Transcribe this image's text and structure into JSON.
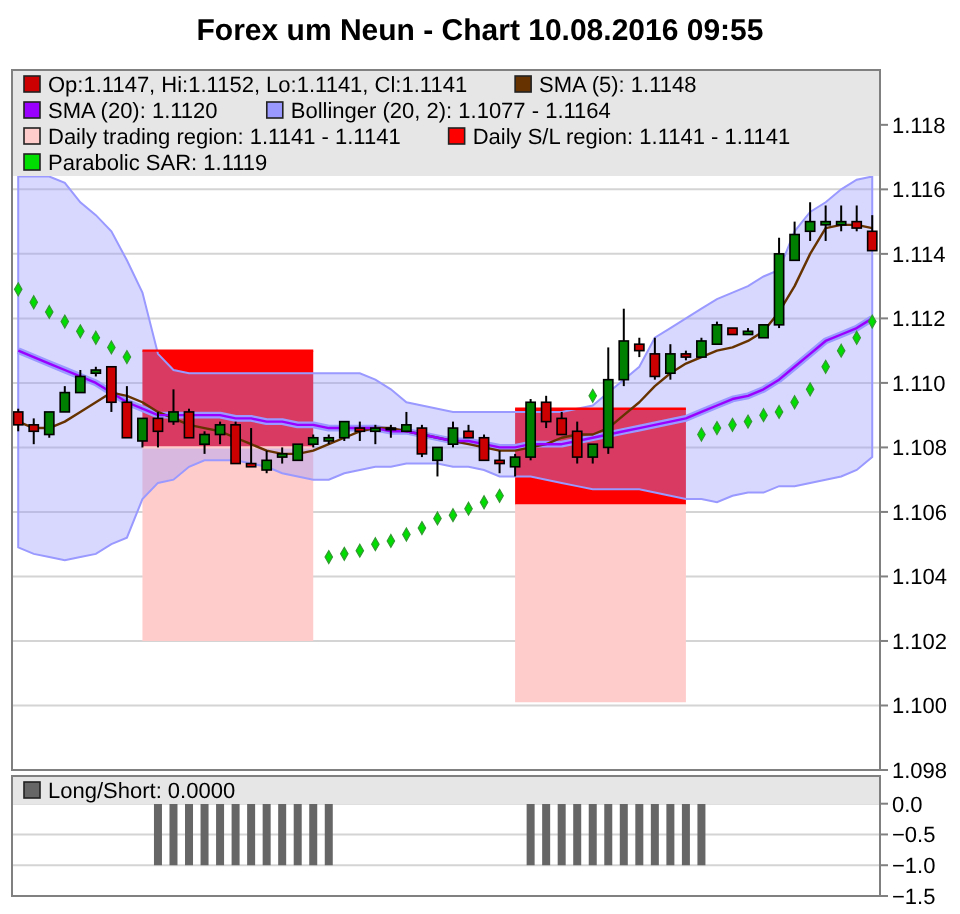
{
  "chart_data": [
    {
      "type": "candlestick",
      "title": "Forex um Neun - Chart 10.08.2016 09:55",
      "categories": [
        null,
        null,
        null,
        null,
        null,
        null,
        null,
        null,
        null,
        null,
        null,
        null,
        null,
        null,
        null,
        null,
        null,
        null,
        null,
        null,
        null,
        null,
        null,
        null,
        null,
        null,
        null,
        null,
        null,
        null,
        null,
        null,
        null,
        null,
        null,
        null,
        null,
        null,
        null,
        null,
        null,
        null,
        null,
        null,
        null,
        null,
        null,
        null,
        null,
        null,
        null,
        null,
        null,
        null,
        null,
        null
      ],
      "ylim": [
        1.098,
        1.1197
      ],
      "yticks": [
        1.098,
        {
          "value": 1.1,
          "label": "1.100"
        },
        1.102,
        1.104,
        1.106,
        1.108,
        {
          "value": 1.11,
          "label": "1.110"
        },
        1.112,
        1.114,
        1.116,
        1.118
      ],
      "grid": "y",
      "tick_labels": "y",
      "legend": "top",
      "series": [
        {
          "name": "Op:1.1147, Hi:1.1152, Lo:1.1141, Cl:1.1141",
          "color": "#cc0000",
          "colors": [
            "#cc0000",
            "#cc0000",
            "#008000",
            "#008000",
            "#008000",
            "#008000",
            "#cc0000",
            "#cc0000",
            "#008000",
            "#cc0000",
            "#008000",
            "#cc0000",
            "#008000",
            "#008000",
            "#cc0000",
            "#cc0000",
            "#008000",
            "#008000",
            "#008000",
            "#008000",
            "#008000",
            "#008000",
            "#cc0000",
            "#008000",
            "#008000",
            "#008000",
            "#cc0000",
            "#008000",
            "#008000",
            "#cc0000",
            "#cc0000",
            "#cc0000",
            "#008000",
            "#008000",
            "#cc0000",
            "#cc0000",
            "#cc0000",
            "#008000",
            "#008000",
            "#008000",
            "#cc0000",
            "#cc0000",
            "#008000",
            "#cc0000",
            "#008000",
            "#008000",
            "#cc0000",
            "#008000",
            "#008000",
            "#008000",
            "#008000",
            "#008000",
            "#008000",
            "#008000",
            "#cc0000",
            "#cc0000"
          ],
          "ohlc": [
            [
              1.1091,
              1.1092,
              1.1085,
              1.1087
            ],
            [
              1.1087,
              1.1089,
              1.1081,
              1.1085
            ],
            [
              1.1084,
              1.1091,
              1.1083,
              1.1091
            ],
            [
              1.1091,
              1.1099,
              1.1091,
              1.1097
            ],
            [
              1.1097,
              1.1104,
              1.1097,
              1.1102
            ],
            [
              1.1103,
              1.1105,
              1.1102,
              1.1104
            ],
            [
              1.1105,
              1.1105,
              1.1091,
              1.1094
            ],
            [
              1.1094,
              1.1099,
              1.1083,
              1.1083
            ],
            [
              1.1082,
              1.1089,
              1.108,
              1.1089
            ],
            [
              1.1089,
              1.1091,
              1.108,
              1.1085
            ],
            [
              1.1088,
              1.1098,
              1.1087,
              1.1091
            ],
            [
              1.1091,
              1.1092,
              1.1083,
              1.1083
            ],
            [
              1.1081,
              1.1085,
              1.1078,
              1.1084
            ],
            [
              1.1084,
              1.1088,
              1.1081,
              1.1087
            ],
            [
              1.1087,
              1.1088,
              1.1075,
              1.1075
            ],
            [
              1.1075,
              1.1086,
              1.1074,
              1.1074
            ],
            [
              1.1073,
              1.1079,
              1.1072,
              1.1076
            ],
            [
              1.1077,
              1.108,
              1.1075,
              1.1078
            ],
            [
              1.1076,
              1.1081,
              1.1076,
              1.1081
            ],
            [
              1.1081,
              1.1084,
              1.108,
              1.1083
            ],
            [
              1.1082,
              1.1084,
              1.1081,
              1.1083
            ],
            [
              1.1083,
              1.1088,
              1.1082,
              1.1088
            ],
            [
              1.1086,
              1.1088,
              1.1082,
              1.1085
            ],
            [
              1.1085,
              1.1087,
              1.1081,
              1.1086
            ],
            [
              1.1086,
              1.1087,
              1.1083,
              1.1086
            ],
            [
              1.1085,
              1.1091,
              1.1085,
              1.1087
            ],
            [
              1.1086,
              1.1087,
              1.1077,
              1.1078
            ],
            [
              1.1076,
              1.108,
              1.1071,
              1.108
            ],
            [
              1.1081,
              1.1088,
              1.108,
              1.1086
            ],
            [
              1.1085,
              1.1087,
              1.1083,
              1.1083
            ],
            [
              1.1083,
              1.1084,
              1.1076,
              1.1076
            ],
            [
              1.1076,
              1.1079,
              1.1072,
              1.1075
            ],
            [
              1.1074,
              1.1078,
              1.1071,
              1.1077
            ],
            [
              1.1077,
              1.1095,
              1.1076,
              1.1094
            ],
            [
              1.1094,
              1.1096,
              1.1086,
              1.1088
            ],
            [
              1.1089,
              1.1091,
              1.1084,
              1.1084
            ],
            [
              1.1085,
              1.1088,
              1.1075,
              1.1077
            ],
            [
              1.1077,
              1.1081,
              1.1075,
              1.1081
            ],
            [
              1.108,
              1.1111,
              1.1078,
              1.1101
            ],
            [
              1.1101,
              1.1123,
              1.1099,
              1.1113
            ],
            [
              1.1112,
              1.1114,
              1.1108,
              1.111
            ],
            [
              1.1109,
              1.1114,
              1.1101,
              1.1102
            ],
            [
              1.1103,
              1.1112,
              1.1101,
              1.1109
            ],
            [
              1.1109,
              1.111,
              1.1107,
              1.1108
            ],
            [
              1.1108,
              1.1114,
              1.1108,
              1.1113
            ],
            [
              1.1112,
              1.1119,
              1.1112,
              1.1118
            ],
            [
              1.1117,
              1.1117,
              1.1115,
              1.1115
            ],
            [
              1.1115,
              1.1117,
              1.1115,
              1.1116
            ],
            [
              1.1114,
              1.1118,
              1.1114,
              1.1118
            ],
            [
              1.1118,
              1.1145,
              1.1117,
              1.114
            ],
            [
              1.1138,
              1.115,
              1.1138,
              1.1146
            ],
            [
              1.1147,
              1.1156,
              1.1144,
              1.115
            ],
            [
              1.1149,
              1.1155,
              1.1144,
              1.115
            ],
            [
              1.1149,
              1.1155,
              1.1147,
              1.115
            ],
            [
              1.115,
              1.1155,
              1.1147,
              1.1148
            ],
            [
              1.1147,
              1.1152,
              1.1141,
              1.1141
            ]
          ]
        },
        {
          "type": "line",
          "name": "SMA (5): 1.1148",
          "color": "#663300",
          "values": [
            1.1088,
            1.1086,
            1.1086,
            1.1088,
            1.1091,
            1.1094,
            1.1097,
            1.1096,
            1.1094,
            1.1091,
            1.1089,
            1.1087,
            1.1086,
            1.1085,
            1.1083,
            1.1081,
            1.1079,
            1.1078,
            1.1078,
            1.1079,
            1.1081,
            1.1083,
            1.1085,
            1.1086,
            1.1086,
            1.1085,
            1.1084,
            1.1083,
            1.1082,
            1.1081,
            1.108,
            1.1079,
            1.1079,
            1.108,
            1.1081,
            1.1083,
            1.1084,
            1.1084,
            1.1086,
            1.109,
            1.1094,
            1.1099,
            1.1103,
            1.1106,
            1.1108,
            1.111,
            1.1111,
            1.1113,
            1.1116,
            1.1122,
            1.113,
            1.114,
            1.1148,
            1.1149,
            1.1149,
            1.1148
          ]
        },
        {
          "type": "line",
          "name": "SMA (20): 1.1120",
          "color": "#9900ff",
          "values": [
            1.111,
            1.1108,
            1.1106,
            1.1104,
            1.1102,
            1.11,
            1.1097,
            1.1094,
            1.1092,
            1.109,
            1.109,
            1.109,
            1.109,
            1.109,
            1.1089,
            1.1089,
            1.1088,
            1.1088,
            1.1087,
            1.1087,
            1.1086,
            1.1086,
            1.1086,
            1.1086,
            1.1085,
            1.1085,
            1.1084,
            1.1083,
            1.1082,
            1.1082,
            1.1081,
            1.108,
            1.108,
            1.1081,
            1.1081,
            1.1081,
            1.1082,
            1.1083,
            1.1084,
            1.1085,
            1.1086,
            1.1087,
            1.1088,
            1.1089,
            1.1091,
            1.1093,
            1.1095,
            1.1096,
            1.1098,
            1.1101,
            1.1105,
            1.1109,
            1.1113,
            1.1115,
            1.1117,
            1.112
          ]
        },
        {
          "type": "line",
          "name": "Bollinger (20, 2): 1.1077 - 1.1164",
          "color": "#9999ff",
          "values": [
            1.111,
            1.1108,
            1.1106,
            1.1104,
            1.1102,
            1.11,
            1.1097,
            1.1094,
            1.1092,
            1.109,
            1.109,
            1.109,
            1.109,
            1.109,
            1.1089,
            1.1089,
            1.1088,
            1.1088,
            1.1087,
            1.1087,
            1.1086,
            1.1086,
            1.1086,
            1.1086,
            1.1085,
            1.1085,
            1.1084,
            1.1083,
            1.1082,
            1.1082,
            1.1081,
            1.108,
            1.108,
            1.1081,
            1.1081,
            1.1081,
            1.1082,
            1.1083,
            1.1084,
            1.1085,
            1.1086,
            1.1087,
            1.1088,
            1.1089,
            1.1091,
            1.1093,
            1.1095,
            1.1096,
            1.1098,
            1.1101,
            1.1105,
            1.1109,
            1.1113,
            1.1115,
            1.1117,
            1.112
          ],
          "upper": [
            1.1164,
            1.1164,
            1.1164,
            1.1162,
            1.1156,
            1.1152,
            1.1147,
            1.1138,
            1.1128,
            1.1109,
            1.1104,
            1.1103,
            1.1103,
            1.1103,
            1.1103,
            1.1103,
            1.1103,
            1.1103,
            1.1103,
            1.1103,
            1.1103,
            1.1103,
            1.1103,
            1.1101,
            1.1098,
            1.1094,
            1.1093,
            1.1092,
            1.1091,
            1.1091,
            1.1091,
            1.1091,
            1.1091,
            1.1091,
            1.1091,
            1.1091,
            1.1092,
            1.1093,
            1.1097,
            1.1101,
            1.1105,
            1.1114,
            1.1117,
            1.112,
            1.1123,
            1.1126,
            1.1128,
            1.113,
            1.1133,
            1.1135,
            1.1147,
            1.1153,
            1.1156,
            1.116,
            1.1163,
            1.1164
          ],
          "lower": [
            1.1049,
            1.1047,
            1.1046,
            1.1045,
            1.1046,
            1.1047,
            1.105,
            1.1052,
            1.1064,
            1.1069,
            1.107,
            1.1074,
            1.1076,
            1.1076,
            1.1076,
            1.1075,
            1.1074,
            1.1072,
            1.1071,
            1.107,
            1.107,
            1.1072,
            1.1073,
            1.1074,
            1.1074,
            1.1075,
            1.1075,
            1.1075,
            1.1074,
            1.1074,
            1.1073,
            1.1071,
            1.1071,
            1.1071,
            1.107,
            1.1069,
            1.1068,
            1.1067,
            1.1067,
            1.1067,
            1.1067,
            1.1066,
            1.1065,
            1.1064,
            1.1064,
            1.1063,
            1.1065,
            1.1066,
            1.1066,
            1.1068,
            1.1068,
            1.1069,
            1.107,
            1.1071,
            1.1073,
            1.1077
          ]
        },
        {
          "type": "line",
          "name": "Daily trading region: 1.1141 - 1.1141",
          "color": "#ffcccc",
          "values": [
            null,
            null,
            null,
            null,
            null,
            null,
            null,
            null,
            1.108,
            1.108,
            1.108,
            1.108,
            1.108,
            1.108,
            1.108,
            1.108,
            1.108,
            1.108,
            1.108,
            1.108,
            null,
            null,
            null,
            null,
            null,
            null,
            null,
            null,
            null,
            null,
            null,
            null,
            1.1062,
            1.1062,
            1.1062,
            1.1062,
            1.1062,
            1.1062,
            1.1062,
            1.1062,
            1.1062,
            1.1062,
            1.1062,
            1.1062,
            null,
            null,
            null,
            null,
            null,
            null,
            null,
            null,
            null,
            null,
            null,
            null
          ],
          "upper": [
            null,
            null,
            null,
            null,
            null,
            null,
            null,
            null,
            1.108,
            1.108,
            1.108,
            1.108,
            1.108,
            1.108,
            1.108,
            1.108,
            1.108,
            1.108,
            1.108,
            1.108,
            null,
            null,
            null,
            null,
            null,
            null,
            null,
            null,
            null,
            null,
            null,
            null,
            1.1062,
            1.1062,
            1.1062,
            1.1062,
            1.1062,
            1.1062,
            1.1062,
            1.1062,
            1.1062,
            1.1062,
            1.1062,
            1.1062,
            null,
            null,
            null,
            null,
            null,
            null,
            null,
            null,
            null,
            null,
            null,
            null
          ],
          "lower": [
            null,
            null,
            null,
            null,
            null,
            null,
            null,
            null,
            1.102,
            1.102,
            1.102,
            1.102,
            1.102,
            1.102,
            1.102,
            1.102,
            1.102,
            1.102,
            1.102,
            1.102,
            null,
            null,
            null,
            null,
            null,
            null,
            null,
            null,
            null,
            null,
            null,
            null,
            1.1001,
            1.1001,
            1.1001,
            1.1001,
            1.1001,
            1.1001,
            1.1001,
            1.1001,
            1.1001,
            1.1001,
            1.1001,
            1.1001,
            null,
            null,
            null,
            null,
            null,
            null,
            null,
            null,
            null,
            null,
            null,
            null
          ]
        },
        {
          "type": "line",
          "name": "Daily S/L region: 1.1141 - 1.1141",
          "color": "#ff0000",
          "values": [
            null,
            null,
            null,
            null,
            null,
            null,
            null,
            null,
            1.111,
            1.111,
            1.111,
            1.111,
            1.111,
            1.111,
            1.111,
            1.111,
            1.111,
            1.111,
            1.111,
            1.111,
            null,
            null,
            null,
            null,
            null,
            null,
            null,
            null,
            null,
            null,
            null,
            null,
            1.1092,
            1.1092,
            1.1092,
            1.1092,
            1.1092,
            1.1092,
            1.1092,
            1.1092,
            1.1092,
            1.1092,
            1.1092,
            1.1092,
            null,
            null,
            null,
            null,
            null,
            null,
            null,
            null,
            null,
            null,
            null,
            null
          ],
          "upper": [
            null,
            null,
            null,
            null,
            null,
            null,
            null,
            null,
            1.111,
            1.111,
            1.111,
            1.111,
            1.111,
            1.111,
            1.111,
            1.111,
            1.111,
            1.111,
            1.111,
            1.111,
            null,
            null,
            null,
            null,
            null,
            null,
            null,
            null,
            null,
            null,
            null,
            null,
            1.1092,
            1.1092,
            1.1092,
            1.1092,
            1.1092,
            1.1092,
            1.1092,
            1.1092,
            1.1092,
            1.1092,
            1.1092,
            1.1092,
            null,
            null,
            null,
            null,
            null,
            null,
            null,
            null,
            null,
            null,
            null,
            null
          ],
          "lower": [
            null,
            null,
            null,
            null,
            null,
            null,
            null,
            null,
            1.108,
            1.108,
            1.108,
            1.108,
            1.108,
            1.108,
            1.108,
            1.108,
            1.108,
            1.108,
            1.108,
            1.108,
            null,
            null,
            null,
            null,
            null,
            null,
            null,
            null,
            null,
            null,
            null,
            null,
            1.1062,
            1.1062,
            1.1062,
            1.1062,
            1.1062,
            1.1062,
            1.1062,
            1.1062,
            1.1062,
            1.1062,
            1.1062,
            1.1062,
            null,
            null,
            null,
            null,
            null,
            null,
            null,
            null,
            null,
            null,
            null,
            null
          ]
        },
        {
          "type": "scatter",
          "name": "Parabolic SAR: 1.1119",
          "color": "#00dd00",
          "marker": "diamond",
          "values": [
            1.1129,
            1.1125,
            1.1122,
            1.1119,
            1.1116,
            1.1114,
            1.1111,
            1.1108,
            null,
            null,
            null,
            null,
            null,
            null,
            null,
            null,
            null,
            null,
            null,
            null,
            1.1046,
            1.1047,
            1.1048,
            1.105,
            1.1051,
            1.1053,
            1.1055,
            1.1058,
            1.1059,
            1.1061,
            1.1063,
            1.1065,
            null,
            null,
            null,
            null,
            null,
            1.1096,
            null,
            null,
            null,
            null,
            null,
            null,
            1.1084,
            1.1086,
            1.1087,
            1.1088,
            1.109,
            1.1091,
            1.1094,
            1.1098,
            1.1105,
            1.111,
            1.1114,
            1.1119
          ]
        }
      ]
    },
    {
      "type": "bar",
      "categories": [
        null,
        null,
        null,
        null,
        null,
        null,
        null,
        null,
        null,
        null,
        null,
        null,
        null,
        null,
        null,
        null,
        null,
        null,
        null,
        null,
        null,
        null,
        null,
        null,
        null,
        null,
        null,
        null,
        null,
        null,
        null,
        null,
        null,
        null,
        null,
        null,
        null,
        null,
        null,
        null,
        null,
        null,
        null,
        null,
        null,
        null,
        null,
        null,
        null,
        null,
        null,
        null,
        null,
        null,
        null,
        null
      ],
      "ylim": [
        -1.5,
        0.45
      ],
      "yticks": [
        {
          "value": 0,
          "label": "0.0"
        },
        {
          "value": -0.5,
          "label": "−0.5"
        },
        {
          "value": -1,
          "label": "−1.0"
        },
        {
          "value": -1.5,
          "label": "−1.5"
        }
      ],
      "grid": "y",
      "tick_labels": "y",
      "legend": "top",
      "series": [
        {
          "name": "Long/Short: 0.0000",
          "color": "#666666",
          "values": [
            0,
            0,
            0,
            0,
            0,
            0,
            0,
            0,
            0,
            -1,
            -1,
            -1,
            -1,
            -1,
            -1,
            -1,
            -1,
            -1,
            -1,
            -1,
            -1,
            0,
            0,
            0,
            0,
            0,
            0,
            0,
            0,
            0,
            0,
            0,
            0,
            -1,
            -1,
            -1,
            -1,
            -1,
            -1,
            -1,
            -1,
            -1,
            -1,
            -1,
            -1,
            0,
            0,
            0,
            0,
            0,
            0,
            0,
            0,
            0,
            0,
            0
          ]
        }
      ]
    }
  ]
}
